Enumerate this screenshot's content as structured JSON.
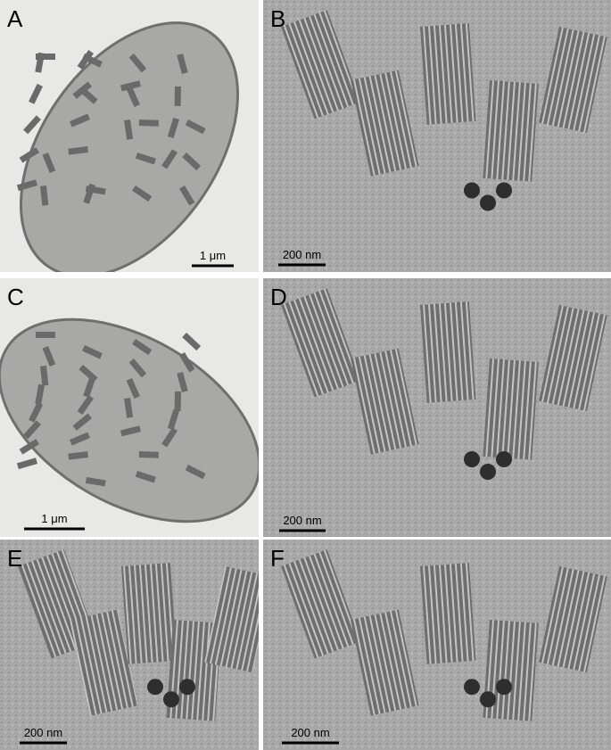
{
  "panels": [
    {
      "label": "A",
      "scale_bar": "1 μm"
    },
    {
      "label": "B",
      "scale_bar": "200 nm"
    },
    {
      "label": "C",
      "scale_bar": "1 μm"
    },
    {
      "label": "D",
      "scale_bar": "200 nm"
    },
    {
      "label": "E",
      "scale_bar": "200 nm"
    },
    {
      "label": "F",
      "scale_bar": "200 nm"
    }
  ]
}
